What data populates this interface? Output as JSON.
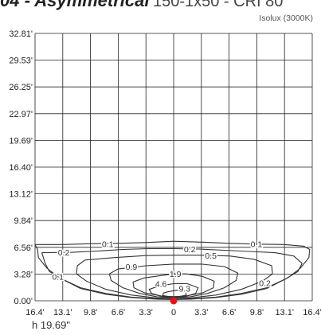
{
  "header": {
    "title_bold": "04 - Asymmetrical",
    "title_rest": "150-1x50 - CRI 80",
    "subtitle": "Isolux (3000K)"
  },
  "chart_data": {
    "type": "contour",
    "title": "Isolux (3000K)",
    "x_tick_labels": [
      "16.4'",
      "13.1'",
      "9.8'",
      "6.6'",
      "3.3'",
      "0",
      "3.3'",
      "6.6'",
      "9.8'",
      "13.1'",
      "16.4'"
    ],
    "y_tick_labels": [
      "0.00'",
      "3.28'",
      "6.56'",
      "9.84'",
      "13.12'",
      "16.40'",
      "19.69'",
      "22.97'",
      "26.25'",
      "29.53'",
      "32.81'"
    ],
    "xlim": [
      -16.4,
      16.4
    ],
    "ylim": [
      0,
      32.81
    ],
    "grid": true,
    "mounting_height": "h 19.69\"",
    "luminaire_position": [
      0,
      0
    ],
    "contours": [
      {
        "label": "0.1",
        "points": [
          [
            -16.4,
            6.9
          ],
          [
            -13.1,
            6.9
          ],
          [
            -9.8,
            7.0
          ],
          [
            -6.6,
            7.05
          ],
          [
            -3.3,
            7.15
          ],
          [
            0,
            7.3
          ],
          [
            3.3,
            7.2
          ],
          [
            6.6,
            7.05
          ],
          [
            9.8,
            6.95
          ],
          [
            13.1,
            6.9
          ],
          [
            15.4,
            6.7
          ],
          [
            16.1,
            6.3
          ],
          [
            16.0,
            5.3
          ],
          [
            15.0,
            4.0
          ],
          [
            13.5,
            2.8
          ],
          [
            11.0,
            1.5
          ],
          [
            8.0,
            0.8
          ],
          [
            5.0,
            0.4
          ],
          [
            2.0,
            0.2
          ],
          [
            0,
            0.15
          ],
          [
            -2.0,
            0.2
          ],
          [
            -5.0,
            0.4
          ],
          [
            -8.0,
            0.8
          ],
          [
            -11.0,
            1.5
          ],
          [
            -13.5,
            2.8
          ],
          [
            -15.0,
            4.0
          ],
          [
            -16.0,
            5.3
          ],
          [
            -16.1,
            6.3
          ],
          [
            -16.4,
            6.9
          ]
        ]
      },
      {
        "label": "0.2",
        "points": [
          [
            -15.6,
            5.9
          ],
          [
            -12.0,
            5.95
          ],
          [
            -9.0,
            6.1
          ],
          [
            -6.0,
            6.3
          ],
          [
            -3.0,
            6.4
          ],
          [
            0,
            6.4
          ],
          [
            3.0,
            6.35
          ],
          [
            6.0,
            6.2
          ],
          [
            9.0,
            6.05
          ],
          [
            12.0,
            5.9
          ],
          [
            14.2,
            5.5
          ],
          [
            15.2,
            4.6
          ],
          [
            14.7,
            3.6
          ],
          [
            13.3,
            2.7
          ],
          [
            11.0,
            1.6
          ],
          [
            8.0,
            0.9
          ],
          [
            5.0,
            0.45
          ],
          [
            2.0,
            0.25
          ],
          [
            0,
            0.2
          ],
          [
            -2.0,
            0.25
          ],
          [
            -5.0,
            0.45
          ],
          [
            -8.0,
            0.9
          ],
          [
            -11.0,
            1.6
          ],
          [
            -13.3,
            2.7
          ],
          [
            -14.7,
            3.6
          ],
          [
            -15.2,
            4.6
          ],
          [
            -15.6,
            5.9
          ]
        ]
      },
      {
        "label": "0.5",
        "points": [
          [
            -10.5,
            5.0
          ],
          [
            -7.0,
            5.3
          ],
          [
            -3.3,
            5.55
          ],
          [
            0,
            5.6
          ],
          [
            3.3,
            5.6
          ],
          [
            6.6,
            5.5
          ],
          [
            9.5,
            5.1
          ],
          [
            11.6,
            4.3
          ],
          [
            11.7,
            3.3
          ],
          [
            10.5,
            2.4
          ],
          [
            8.0,
            1.4
          ],
          [
            5.0,
            0.7
          ],
          [
            2.0,
            0.35
          ],
          [
            0,
            0.3
          ],
          [
            -2.0,
            0.35
          ],
          [
            -5.0,
            0.7
          ],
          [
            -8.0,
            1.4
          ],
          [
            -10.3,
            2.4
          ],
          [
            -11.5,
            3.3
          ],
          [
            -11.4,
            4.3
          ],
          [
            -10.5,
            5.0
          ]
        ]
      },
      {
        "label": "0.9",
        "points": [
          [
            -6.6,
            3.9
          ],
          [
            -3.3,
            4.3
          ],
          [
            0,
            4.5
          ],
          [
            3.3,
            4.5
          ],
          [
            6.0,
            4.2
          ],
          [
            7.6,
            3.4
          ],
          [
            7.4,
            2.5
          ],
          [
            6.0,
            1.6
          ],
          [
            4.0,
            0.9
          ],
          [
            2.0,
            0.5
          ],
          [
            0,
            0.4
          ],
          [
            -2.0,
            0.5
          ],
          [
            -4.0,
            0.9
          ],
          [
            -6.0,
            1.6
          ],
          [
            -7.4,
            2.5
          ],
          [
            -7.6,
            3.3
          ],
          [
            -6.6,
            3.9
          ]
        ]
      },
      {
        "label": "1.9",
        "points": [
          [
            -3.5,
            2.8
          ],
          [
            -1.5,
            3.1
          ],
          [
            0,
            3.3
          ],
          [
            1.5,
            3.3
          ],
          [
            3.4,
            3.0
          ],
          [
            4.8,
            2.4
          ],
          [
            4.7,
            1.6
          ],
          [
            3.5,
            1.0
          ],
          [
            1.5,
            0.6
          ],
          [
            0,
            0.5
          ],
          [
            -1.5,
            0.6
          ],
          [
            -3.5,
            1.0
          ],
          [
            -4.7,
            1.6
          ],
          [
            -4.8,
            2.3
          ],
          [
            -3.5,
            2.8
          ]
        ]
      },
      {
        "label": "4.6",
        "points": [
          [
            -1.8,
            1.8
          ],
          [
            0,
            2.1
          ],
          [
            1.6,
            2.1
          ],
          [
            2.9,
            1.6
          ],
          [
            2.6,
            0.9
          ],
          [
            1.4,
            0.55
          ],
          [
            0,
            0.5
          ],
          [
            -1.4,
            0.55
          ],
          [
            -2.6,
            0.9
          ],
          [
            -2.9,
            1.4
          ],
          [
            -1.8,
            1.8
          ]
        ]
      },
      {
        "label": "9.3",
        "points": [
          [
            -0.7,
            1.1
          ],
          [
            0.4,
            1.3
          ],
          [
            1.4,
            1.1
          ],
          [
            1.5,
            0.7
          ],
          [
            0.6,
            0.5
          ],
          [
            -0.5,
            0.5
          ],
          [
            -1.3,
            0.65
          ],
          [
            -1.2,
            0.95
          ],
          [
            -0.7,
            1.1
          ]
        ]
      }
    ],
    "contour_labels": [
      {
        "text": "0.1",
        "x": -7.8,
        "y": 7.0
      },
      {
        "text": "0.1",
        "x": 9.8,
        "y": 7.0
      },
      {
        "text": "0.1",
        "x": -13.7,
        "y": 3.0
      },
      {
        "text": "0.2",
        "x": -13.0,
        "y": 5.95
      },
      {
        "text": "0.2",
        "x": 1.9,
        "y": 6.35
      },
      {
        "text": "0.2",
        "x": 10.8,
        "y": 2.2
      },
      {
        "text": "0.5",
        "x": 4.4,
        "y": 5.55
      },
      {
        "text": "0.9",
        "x": -5.0,
        "y": 4.2
      },
      {
        "text": "1.9",
        "x": 0.2,
        "y": 3.3
      },
      {
        "text": "4.6",
        "x": -1.5,
        "y": 2.1
      },
      {
        "text": "9.3",
        "x": 1.3,
        "y": 1.5
      }
    ]
  }
}
